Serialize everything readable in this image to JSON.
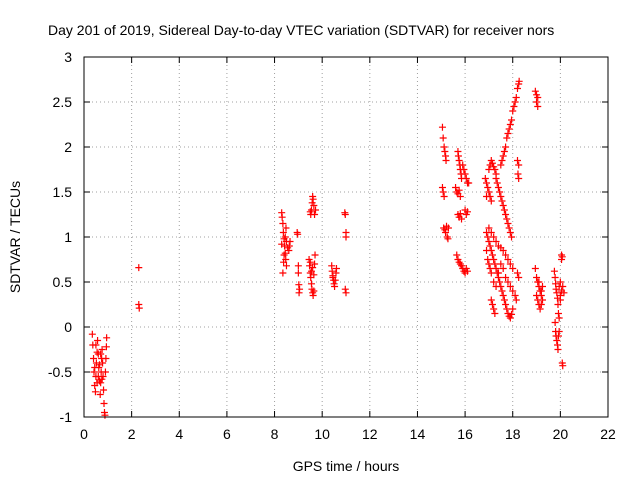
{
  "chart_data": {
    "type": "scatter",
    "title": "Day 201 of 2019, Sidereal Day-to-day VTEC variation (SDTVAR) for receiver nors",
    "xlabel": "GPS time / hours",
    "ylabel": "SDTVAR / TECUs",
    "xlim": [
      0,
      22
    ],
    "ylim": [
      -1,
      3
    ],
    "xticks": [
      0,
      2,
      4,
      6,
      8,
      10,
      12,
      14,
      16,
      18,
      20,
      22
    ],
    "yticks": [
      -1,
      -0.5,
      0,
      0.5,
      1,
      1.5,
      2,
      2.5,
      3
    ],
    "xtick_labels": [
      "0",
      "2",
      "4",
      "6",
      "8",
      "10",
      "12",
      "14",
      "16",
      "18",
      "20",
      "22"
    ],
    "ytick_labels": [
      "-1",
      "-0.5",
      "0",
      "0.5",
      "1",
      "1.5",
      "2",
      "2.5",
      "3"
    ],
    "grid": true,
    "marker": "+",
    "colors": {
      "points": "#ff0000",
      "grid": "#a0a0a0",
      "frame": "#000000"
    },
    "series": [
      {
        "name": "SDTVAR",
        "points": [
          [
            0.35,
            -0.08
          ],
          [
            0.37,
            -0.2
          ],
          [
            0.4,
            -0.35
          ],
          [
            0.42,
            -0.5
          ],
          [
            0.45,
            -0.65
          ],
          [
            0.48,
            -0.72
          ],
          [
            0.5,
            -0.55
          ],
          [
            0.52,
            -0.4
          ],
          [
            0.55,
            -0.28
          ],
          [
            0.57,
            -0.15
          ],
          [
            0.6,
            -0.3
          ],
          [
            0.62,
            -0.45
          ],
          [
            0.65,
            -0.6
          ],
          [
            0.68,
            -0.75
          ],
          [
            0.7,
            -0.62
          ],
          [
            0.72,
            -0.5
          ],
          [
            0.74,
            -0.35
          ],
          [
            0.76,
            -0.25
          ],
          [
            0.78,
            -0.4
          ],
          [
            0.8,
            -0.55
          ],
          [
            0.82,
            -0.7
          ],
          [
            0.84,
            -0.85
          ],
          [
            0.86,
            -0.95
          ],
          [
            0.88,
            -0.98
          ],
          [
            0.9,
            -0.5
          ],
          [
            0.92,
            -0.35
          ],
          [
            0.94,
            -0.22
          ],
          [
            0.95,
            -0.12
          ],
          [
            0.45,
            -0.45
          ],
          [
            0.6,
            -0.55
          ],
          [
            0.7,
            -0.3
          ],
          [
            0.55,
            -0.62
          ],
          [
            0.65,
            -0.42
          ],
          [
            0.75,
            -0.58
          ],
          [
            0.5,
            -0.2
          ],
          [
            2.3,
            0.66
          ],
          [
            2.3,
            0.25
          ],
          [
            2.32,
            0.21
          ],
          [
            8.3,
            1.27
          ],
          [
            8.32,
            1.22
          ],
          [
            8.35,
            1.15
          ],
          [
            8.37,
            1.05
          ],
          [
            8.4,
            0.98
          ],
          [
            8.42,
            0.9
          ],
          [
            8.45,
            0.82
          ],
          [
            8.47,
            0.75
          ],
          [
            8.5,
            0.68
          ],
          [
            8.35,
            0.6
          ],
          [
            8.4,
            0.8
          ],
          [
            8.45,
            1.0
          ],
          [
            8.5,
            0.95
          ],
          [
            8.55,
            0.88
          ],
          [
            8.6,
            0.85
          ],
          [
            8.62,
            0.9
          ],
          [
            8.65,
            0.95
          ],
          [
            8.3,
            0.92
          ],
          [
            8.38,
            0.72
          ],
          [
            8.48,
            1.1
          ],
          [
            8.95,
            1.05
          ],
          [
            8.97,
            1.03
          ],
          [
            9.0,
            0.68
          ],
          [
            9.0,
            0.6
          ],
          [
            9.02,
            0.47
          ],
          [
            9.05,
            0.42
          ],
          [
            9.03,
            0.38
          ],
          [
            9.45,
            0.75
          ],
          [
            9.47,
            0.68
          ],
          [
            9.5,
            0.6
          ],
          [
            9.52,
            0.55
          ],
          [
            9.55,
            0.48
          ],
          [
            9.57,
            0.42
          ],
          [
            9.6,
            0.38
          ],
          [
            9.62,
            0.35
          ],
          [
            9.65,
            0.4
          ],
          [
            9.68,
            0.7
          ],
          [
            9.7,
            0.8
          ],
          [
            9.5,
            1.28
          ],
          [
            9.52,
            1.25
          ],
          [
            9.55,
            1.3
          ],
          [
            9.58,
            1.38
          ],
          [
            9.6,
            1.45
          ],
          [
            9.62,
            1.42
          ],
          [
            9.65,
            1.35
          ],
          [
            9.68,
            1.25
          ],
          [
            9.72,
            1.3
          ],
          [
            9.5,
            0.72
          ],
          [
            9.55,
            0.62
          ],
          [
            9.6,
            0.66
          ],
          [
            9.65,
            0.58
          ],
          [
            10.4,
            0.68
          ],
          [
            10.42,
            0.62
          ],
          [
            10.45,
            0.57
          ],
          [
            10.48,
            0.52
          ],
          [
            10.5,
            0.48
          ],
          [
            10.52,
            0.45
          ],
          [
            10.55,
            0.52
          ],
          [
            10.58,
            0.6
          ],
          [
            10.6,
            0.65
          ],
          [
            10.45,
            0.55
          ],
          [
            10.95,
            1.27
          ],
          [
            10.97,
            1.25
          ],
          [
            11.0,
            1.05
          ],
          [
            11.0,
            1.0
          ],
          [
            10.97,
            0.42
          ],
          [
            11.0,
            0.38
          ],
          [
            15.05,
            2.22
          ],
          [
            15.08,
            2.1
          ],
          [
            15.12,
            2.0
          ],
          [
            15.15,
            1.95
          ],
          [
            15.18,
            1.9
          ],
          [
            15.2,
            1.85
          ],
          [
            15.05,
            1.55
          ],
          [
            15.08,
            1.5
          ],
          [
            15.12,
            1.45
          ],
          [
            15.1,
            1.1
          ],
          [
            15.15,
            1.08
          ],
          [
            15.18,
            1.05
          ],
          [
            15.22,
            1.12
          ],
          [
            15.25,
            1.0
          ],
          [
            15.28,
            0.98
          ],
          [
            15.3,
            1.1
          ],
          [
            15.7,
            1.95
          ],
          [
            15.72,
            1.9
          ],
          [
            15.75,
            1.85
          ],
          [
            15.78,
            1.8
          ],
          [
            15.8,
            1.75
          ],
          [
            15.83,
            1.7
          ],
          [
            15.85,
            1.65
          ],
          [
            15.6,
            1.55
          ],
          [
            15.65,
            1.5
          ],
          [
            15.7,
            1.48
          ],
          [
            15.75,
            1.52
          ],
          [
            15.8,
            1.45
          ],
          [
            15.7,
            1.25
          ],
          [
            15.75,
            1.22
          ],
          [
            15.8,
            1.26
          ],
          [
            15.85,
            1.2
          ],
          [
            15.65,
            0.8
          ],
          [
            15.7,
            0.75
          ],
          [
            15.75,
            0.72
          ],
          [
            15.8,
            0.7
          ],
          [
            15.85,
            0.68
          ],
          [
            15.9,
            0.65
          ],
          [
            15.95,
            0.62
          ],
          [
            16.0,
            0.6
          ],
          [
            16.05,
            0.65
          ],
          [
            16.1,
            0.62
          ],
          [
            15.9,
            1.8
          ],
          [
            15.95,
            1.75
          ],
          [
            16.0,
            1.7
          ],
          [
            16.05,
            1.65
          ],
          [
            16.1,
            1.6
          ],
          [
            16.0,
            1.3
          ],
          [
            16.05,
            1.25
          ],
          [
            16.1,
            1.28
          ],
          [
            16.15,
            1.6
          ],
          [
            16.85,
            1.65
          ],
          [
            16.9,
            1.6
          ],
          [
            16.95,
            1.55
          ],
          [
            17.0,
            1.5
          ],
          [
            17.05,
            1.45
          ],
          [
            17.1,
            1.4
          ],
          [
            16.9,
            1.45
          ],
          [
            17.0,
            1.75
          ],
          [
            17.05,
            1.8
          ],
          [
            17.1,
            1.85
          ],
          [
            17.15,
            1.82
          ],
          [
            17.2,
            1.78
          ],
          [
            17.25,
            1.75
          ],
          [
            17.3,
            1.7
          ],
          [
            16.9,
            1.05
          ],
          [
            16.95,
            1.0
          ],
          [
            17.0,
            0.95
          ],
          [
            17.05,
            0.9
          ],
          [
            17.1,
            0.85
          ],
          [
            17.15,
            0.8
          ],
          [
            17.2,
            0.75
          ],
          [
            17.25,
            0.7
          ],
          [
            17.3,
            0.65
          ],
          [
            17.35,
            0.6
          ],
          [
            17.4,
            0.55
          ],
          [
            17.45,
            0.5
          ],
          [
            17.5,
            0.45
          ],
          [
            17.55,
            0.4
          ],
          [
            17.6,
            0.35
          ],
          [
            17.65,
            0.3
          ],
          [
            17.7,
            0.25
          ],
          [
            17.75,
            0.2
          ],
          [
            17.8,
            0.15
          ],
          [
            17.85,
            0.12
          ],
          [
            17.9,
            0.1
          ],
          [
            17.95,
            0.14
          ],
          [
            18.0,
            0.2
          ],
          [
            17.0,
            1.1
          ],
          [
            17.1,
            1.05
          ],
          [
            17.2,
            1.0
          ],
          [
            17.3,
            0.95
          ],
          [
            17.4,
            0.9
          ],
          [
            17.5,
            0.88
          ],
          [
            17.6,
            0.85
          ],
          [
            17.7,
            0.8
          ],
          [
            17.8,
            0.75
          ],
          [
            17.9,
            0.7
          ],
          [
            18.0,
            0.65
          ],
          [
            17.3,
            1.65
          ],
          [
            17.35,
            1.6
          ],
          [
            17.4,
            1.55
          ],
          [
            17.45,
            1.5
          ],
          [
            17.5,
            1.45
          ],
          [
            17.55,
            1.4
          ],
          [
            17.6,
            1.35
          ],
          [
            17.65,
            1.3
          ],
          [
            17.7,
            1.25
          ],
          [
            17.75,
            1.2
          ],
          [
            17.8,
            1.15
          ],
          [
            17.85,
            1.1
          ],
          [
            17.9,
            1.05
          ],
          [
            17.95,
            1.0
          ],
          [
            17.5,
            1.8
          ],
          [
            17.55,
            1.85
          ],
          [
            17.6,
            1.9
          ],
          [
            17.65,
            1.95
          ],
          [
            17.7,
            2.0
          ],
          [
            17.75,
            2.1
          ],
          [
            17.8,
            2.15
          ],
          [
            17.85,
            2.2
          ],
          [
            17.9,
            2.25
          ],
          [
            17.95,
            2.3
          ],
          [
            18.0,
            2.4
          ],
          [
            18.05,
            2.45
          ],
          [
            18.1,
            2.5
          ],
          [
            18.15,
            2.55
          ],
          [
            18.2,
            2.65
          ],
          [
            18.25,
            2.7
          ],
          [
            18.27,
            2.73
          ],
          [
            18.2,
            1.85
          ],
          [
            18.25,
            1.8
          ],
          [
            18.22,
            1.7
          ],
          [
            18.25,
            1.65
          ],
          [
            17.2,
            0.5
          ],
          [
            17.3,
            0.45
          ],
          [
            17.4,
            0.6
          ],
          [
            17.5,
            0.7
          ],
          [
            17.6,
            0.65
          ],
          [
            17.7,
            0.55
          ],
          [
            17.8,
            0.5
          ],
          [
            17.9,
            0.45
          ],
          [
            18.0,
            0.4
          ],
          [
            18.1,
            0.35
          ],
          [
            18.15,
            0.3
          ],
          [
            18.2,
            0.6
          ],
          [
            18.25,
            0.55
          ],
          [
            17.1,
            0.3
          ],
          [
            17.15,
            0.25
          ],
          [
            17.2,
            0.2
          ],
          [
            17.25,
            0.15
          ],
          [
            16.9,
            0.85
          ],
          [
            16.95,
            0.75
          ],
          [
            17.0,
            0.7
          ],
          [
            17.05,
            0.65
          ],
          [
            17.1,
            0.6
          ],
          [
            18.95,
            2.62
          ],
          [
            19.0,
            2.58
          ],
          [
            19.05,
            2.55
          ],
          [
            19.0,
            2.5
          ],
          [
            19.05,
            2.45
          ],
          [
            18.95,
            0.65
          ],
          [
            19.0,
            0.55
          ],
          [
            19.05,
            0.5
          ],
          [
            19.1,
            0.45
          ],
          [
            19.15,
            0.4
          ],
          [
            19.2,
            0.35
          ],
          [
            19.25,
            0.3
          ],
          [
            19.0,
            0.35
          ],
          [
            19.05,
            0.3
          ],
          [
            19.1,
            0.25
          ],
          [
            19.15,
            0.2
          ],
          [
            19.2,
            0.25
          ],
          [
            19.25,
            0.45
          ],
          [
            19.1,
            0.5
          ],
          [
            19.2,
            0.4
          ],
          [
            19.75,
            0.62
          ],
          [
            19.78,
            0.55
          ],
          [
            19.8,
            0.48
          ],
          [
            19.82,
            0.42
          ],
          [
            19.85,
            0.38
          ],
          [
            19.88,
            0.32
          ],
          [
            19.9,
            0.25
          ],
          [
            19.92,
            0.15
          ],
          [
            19.95,
            0.1
          ],
          [
            19.78,
            0.05
          ],
          [
            19.8,
            -0.05
          ],
          [
            19.82,
            -0.1
          ],
          [
            19.85,
            -0.15
          ],
          [
            19.88,
            -0.2
          ],
          [
            19.9,
            -0.25
          ],
          [
            19.92,
            -0.1
          ],
          [
            19.95,
            0.45
          ],
          [
            20.0,
            0.5
          ],
          [
            20.05,
            0.4
          ],
          [
            20.0,
            0.35
          ],
          [
            20.05,
            0.8
          ],
          [
            20.08,
            0.78
          ],
          [
            20.05,
            0.75
          ],
          [
            20.1,
            0.45
          ],
          [
            20.15,
            0.38
          ],
          [
            20.08,
            -0.4
          ],
          [
            20.1,
            -0.43
          ],
          [
            19.95,
            -0.05
          ],
          [
            20.0,
            0.3
          ]
        ]
      }
    ]
  }
}
